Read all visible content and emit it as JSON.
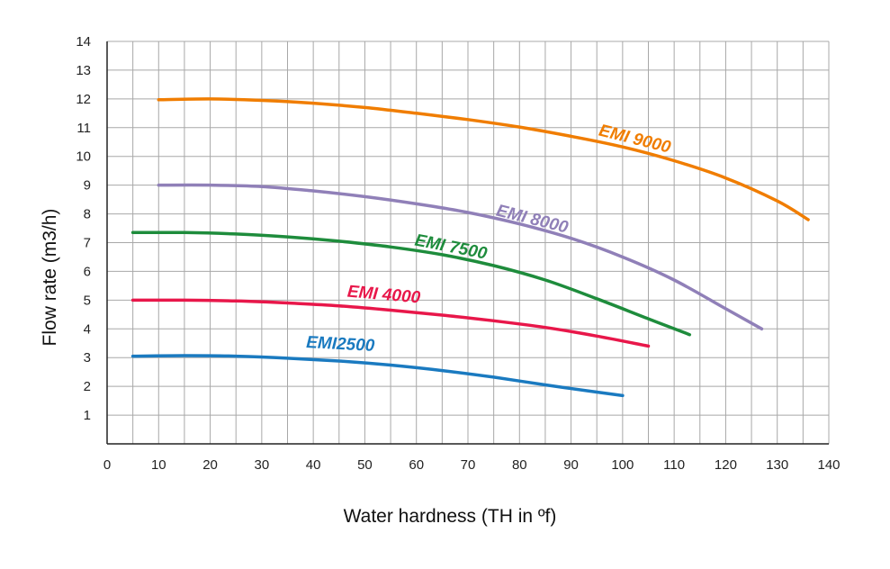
{
  "chart_data": {
    "type": "line",
    "xlabel": "Water hardness (TH in ºf)",
    "ylabel": "Flow rate (m3/h)",
    "xlim": [
      0,
      140
    ],
    "ylim": [
      0,
      14
    ],
    "x_ticks": [
      0,
      10,
      20,
      30,
      40,
      50,
      60,
      70,
      80,
      90,
      100,
      110,
      120,
      130,
      140
    ],
    "y_ticks": [
      1,
      2,
      3,
      4,
      5,
      6,
      7,
      8,
      9,
      10,
      11,
      12,
      13,
      14
    ],
    "grid": true,
    "legend": "none (series labeled inline)",
    "series": [
      {
        "name": "EMI 9000",
        "color": "#f07d00",
        "x": [
          10,
          20,
          30,
          40,
          50,
          60,
          70,
          80,
          90,
          100,
          110,
          120,
          130,
          136
        ],
        "y": [
          11.97,
          12.0,
          11.95,
          11.85,
          11.7,
          11.5,
          11.28,
          11.02,
          10.7,
          10.33,
          9.85,
          9.25,
          8.45,
          7.8
        ]
      },
      {
        "name": "EMI 8000",
        "color": "#9080b8",
        "x": [
          10,
          20,
          30,
          40,
          50,
          60,
          70,
          80,
          90,
          100,
          110,
          120,
          127
        ],
        "y": [
          9.0,
          9.0,
          8.95,
          8.8,
          8.6,
          8.35,
          8.05,
          7.65,
          7.15,
          6.5,
          5.7,
          4.7,
          4.0
        ]
      },
      {
        "name": "EMI 7500",
        "color": "#1e8c3c",
        "x": [
          5,
          15,
          25,
          35,
          45,
          55,
          65,
          75,
          85,
          95,
          105,
          113
        ],
        "y": [
          7.35,
          7.35,
          7.3,
          7.2,
          7.05,
          6.85,
          6.58,
          6.2,
          5.7,
          5.05,
          4.35,
          3.8
        ]
      },
      {
        "name": "EMI 4000",
        "color": "#e8174a",
        "x": [
          5,
          15,
          25,
          35,
          45,
          55,
          65,
          75,
          85,
          95,
          105
        ],
        "y": [
          5.0,
          5.0,
          4.97,
          4.9,
          4.8,
          4.65,
          4.48,
          4.28,
          4.05,
          3.75,
          3.4
        ]
      },
      {
        "name": "EMI2500",
        "color": "#1a7ac0",
        "x": [
          5,
          15,
          25,
          35,
          45,
          55,
          65,
          75,
          85,
          95,
          100
        ],
        "y": [
          3.05,
          3.07,
          3.05,
          2.98,
          2.88,
          2.74,
          2.55,
          2.32,
          2.05,
          1.8,
          1.68
        ]
      }
    ],
    "annotations": [
      "EMI 9000",
      "EMI 8000",
      "EMI 7500",
      "EMI 4000",
      "EMI2500"
    ]
  }
}
